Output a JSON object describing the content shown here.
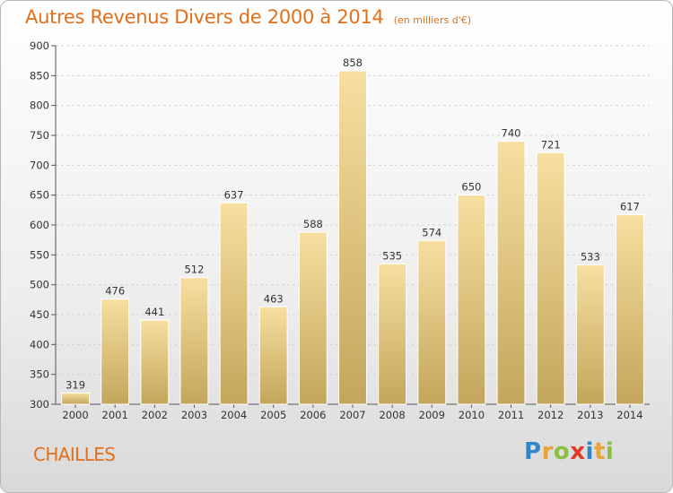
{
  "header": {
    "title": "Autres Revenus Divers de 2000 à 2014",
    "unit": "(en milliers d'€)"
  },
  "footer": {
    "commune": "CHAILLES",
    "logo": {
      "letters": [
        "P",
        "r",
        "o",
        "x",
        "i",
        "t",
        "i"
      ],
      "colors": [
        "#2f86c8",
        "#e8a33a",
        "#8cbf3f",
        "#e03a2a",
        "#2f86c8",
        "#e8a33a",
        "#8cbf3f"
      ]
    }
  },
  "chart_data": {
    "type": "bar",
    "categories": [
      "2000",
      "2001",
      "2002",
      "2003",
      "2004",
      "2005",
      "2006",
      "2007",
      "2008",
      "2009",
      "2010",
      "2011",
      "2012",
      "2013",
      "2014"
    ],
    "values": [
      319,
      476,
      441,
      512,
      637,
      463,
      588,
      858,
      535,
      574,
      650,
      740,
      721,
      533,
      617
    ],
    "ylim": [
      300,
      900
    ],
    "yticks": [
      300,
      350,
      400,
      450,
      500,
      550,
      600,
      650,
      700,
      750,
      800,
      850,
      900
    ],
    "grid": true,
    "colors": {
      "bar_top": "#f6dfa0",
      "bar_bottom": "#c3a65b",
      "text": "#e0701c"
    }
  }
}
